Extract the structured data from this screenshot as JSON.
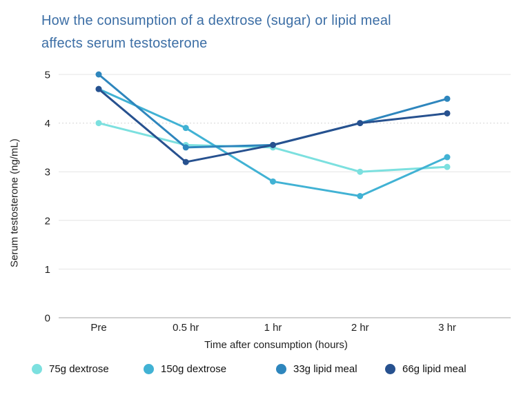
{
  "page": {
    "background": "#ffffff"
  },
  "chart_data": {
    "type": "line",
    "title": "How the consumption of a dextrose (sugar) or lipid meal\naffects serum testosterone",
    "title_color": "#3c6ea5",
    "xlabel": "Time after consumption (hours)",
    "ylabel": "Serum testosterone (ng/mL)",
    "categories": [
      "Pre",
      "0.5 hr",
      "1 hr",
      "2 hr",
      "3 hr"
    ],
    "yticks": [
      0,
      1,
      2,
      3,
      4,
      5
    ],
    "ylim": [
      0,
      5
    ],
    "grid": "horizontal",
    "dashed_gridline_at": 4,
    "legend_position": "bottom",
    "series": [
      {
        "name": "75g dextrose",
        "color": "#7ce0df",
        "values": [
          4.0,
          3.55,
          3.5,
          3.0,
          3.1
        ]
      },
      {
        "name": "150g dextrose",
        "color": "#41b2d4",
        "values": [
          4.7,
          3.9,
          2.8,
          2.5,
          3.3
        ]
      },
      {
        "name": "33g lipid meal",
        "color": "#2e86bd",
        "values": [
          5.0,
          3.5,
          3.55,
          4.0,
          4.5
        ]
      },
      {
        "name": "66g lipid meal",
        "color": "#27518f",
        "values": [
          4.7,
          3.2,
          3.55,
          4.0,
          4.2
        ]
      }
    ]
  }
}
